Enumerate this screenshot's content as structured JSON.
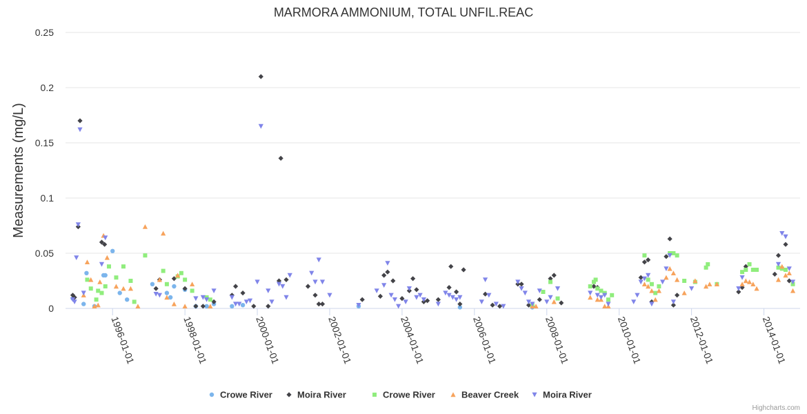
{
  "credits": "Highcharts.com",
  "chart_data": {
    "type": "scatter",
    "title": "MARMORA AMMONIUM, TOTAL UNFIL.REAC",
    "ylabel": "Measurements (mg/L)",
    "xlabel": "",
    "ylim": [
      0,
      0.25
    ],
    "yticks": [
      0,
      0.05,
      0.1,
      0.15,
      0.2,
      0.25
    ],
    "ytick_labels": [
      "0",
      "0.05",
      "0.1",
      "0.15",
      "0.2",
      "0.25"
    ],
    "xlim": [
      1994.7,
      2015.0
    ],
    "xticks": [
      1996,
      1998,
      2000,
      2002,
      2004,
      2006,
      2008,
      2010,
      2012,
      2014
    ],
    "xtick_labels": [
      "1996-01-01",
      "1998-01-01",
      "2000-01-01",
      "2002-01-01",
      "2004-01-01",
      "2006-01-01",
      "2008-01-01",
      "2010-01-01",
      "2012-01-01",
      "2014-01-01"
    ],
    "grid": true,
    "legend_position": "bottom",
    "series": [
      {
        "name": "Crowe River",
        "color": "#7cb5ec",
        "marker": "circle",
        "points": [
          [
            1994.9,
            0.009
          ],
          [
            1995.2,
            0.004
          ],
          [
            1995.28,
            0.032
          ],
          [
            1995.5,
            0.002
          ],
          [
            1995.75,
            0.03
          ],
          [
            1995.8,
            0.03
          ],
          [
            1996.0,
            0.052
          ],
          [
            1996.2,
            0.014
          ],
          [
            1996.4,
            0.008
          ],
          [
            1997.1,
            0.022
          ],
          [
            1997.5,
            0.014
          ],
          [
            1997.6,
            0.01
          ],
          [
            1997.7,
            0.02
          ],
          [
            1998.0,
            0.017
          ],
          [
            1998.3,
            0.002
          ],
          [
            1998.6,
            0.002
          ],
          [
            1998.8,
            0.004
          ],
          [
            1999.3,
            0.002
          ],
          [
            1999.6,
            0.003
          ],
          [
            2002.8,
            0.002
          ],
          [
            2005.6,
            0.001
          ],
          [
            2007.6,
            0.001
          ]
        ]
      },
      {
        "name": "Moira River",
        "color": "#434348",
        "marker": "diamond",
        "points": [
          [
            1994.9,
            0.012
          ],
          [
            1994.95,
            0.01
          ],
          [
            1995.05,
            0.074
          ],
          [
            1995.1,
            0.17
          ],
          [
            1995.7,
            0.06
          ],
          [
            1995.78,
            0.058
          ],
          [
            1997.2,
            0.018
          ],
          [
            1997.3,
            0.026
          ],
          [
            1997.7,
            0.027
          ],
          [
            1998.0,
            0.018
          ],
          [
            1998.3,
            0.002
          ],
          [
            1998.5,
            0.002
          ],
          [
            1998.8,
            0.006
          ],
          [
            1999.3,
            0.012
          ],
          [
            1999.4,
            0.02
          ],
          [
            1999.6,
            0.014
          ],
          [
            1999.9,
            0.002
          ],
          [
            2000.1,
            0.21
          ],
          [
            2000.3,
            0.002
          ],
          [
            2000.6,
            0.025
          ],
          [
            2000.65,
            0.136
          ],
          [
            2000.8,
            0.026
          ],
          [
            2001.4,
            0.02
          ],
          [
            2001.6,
            0.012
          ],
          [
            2001.7,
            0.004
          ],
          [
            2001.8,
            0.004
          ],
          [
            2002.9,
            0.008
          ],
          [
            2003.4,
            0.011
          ],
          [
            2003.5,
            0.03
          ],
          [
            2003.6,
            0.033
          ],
          [
            2003.75,
            0.025
          ],
          [
            2004.0,
            0.009
          ],
          [
            2004.2,
            0.016
          ],
          [
            2004.3,
            0.027
          ],
          [
            2004.4,
            0.017
          ],
          [
            2004.6,
            0.006
          ],
          [
            2004.7,
            0.007
          ],
          [
            2005.0,
            0.008
          ],
          [
            2005.3,
            0.019
          ],
          [
            2005.35,
            0.038
          ],
          [
            2005.5,
            0.015
          ],
          [
            2005.6,
            0.004
          ],
          [
            2005.7,
            0.035
          ],
          [
            2006.3,
            0.013
          ],
          [
            2006.5,
            0.003
          ],
          [
            2006.7,
            0.002
          ],
          [
            2007.2,
            0.022
          ],
          [
            2007.3,
            0.022
          ],
          [
            2007.5,
            0.003
          ],
          [
            2007.6,
            0.002
          ],
          [
            2007.8,
            0.008
          ],
          [
            2008.1,
            0.027
          ],
          [
            2008.2,
            0.03
          ],
          [
            2008.4,
            0.005
          ],
          [
            2009.3,
            0.02
          ],
          [
            2009.4,
            0.019
          ],
          [
            2010.6,
            0.028
          ],
          [
            2010.7,
            0.042
          ],
          [
            2010.8,
            0.044
          ],
          [
            2010.9,
            0.006
          ],
          [
            2011.3,
            0.047
          ],
          [
            2011.4,
            0.063
          ],
          [
            2011.5,
            0.003
          ],
          [
            2011.6,
            0.012
          ],
          [
            2013.3,
            0.015
          ],
          [
            2013.4,
            0.019
          ],
          [
            2013.5,
            0.038
          ],
          [
            2014.3,
            0.031
          ],
          [
            2014.4,
            0.048
          ],
          [
            2014.6,
            0.058
          ],
          [
            2014.7,
            0.025
          ]
        ]
      },
      {
        "name": "Crowe River",
        "color": "#90ed7d",
        "marker": "square",
        "points": [
          [
            1995.3,
            0.026
          ],
          [
            1995.4,
            0.018
          ],
          [
            1995.55,
            0.008
          ],
          [
            1995.6,
            0.016
          ],
          [
            1995.7,
            0.014
          ],
          [
            1995.8,
            0.02
          ],
          [
            1995.9,
            0.038
          ],
          [
            1996.1,
            0.028
          ],
          [
            1996.3,
            0.038
          ],
          [
            1996.5,
            0.025
          ],
          [
            1996.6,
            0.006
          ],
          [
            1996.9,
            0.048
          ],
          [
            1997.4,
            0.034
          ],
          [
            1997.5,
            0.022
          ],
          [
            1997.8,
            0.029
          ],
          [
            1997.9,
            0.032
          ],
          [
            1998.0,
            0.026
          ],
          [
            1998.2,
            0.016
          ],
          [
            1998.6,
            0.01
          ],
          [
            1998.7,
            0.008
          ],
          [
            2007.6,
            0.003
          ],
          [
            2007.9,
            0.015
          ],
          [
            2008.1,
            0.024
          ],
          [
            2008.3,
            0.009
          ],
          [
            2009.2,
            0.02
          ],
          [
            2009.3,
            0.024
          ],
          [
            2009.35,
            0.026
          ],
          [
            2009.4,
            0.018
          ],
          [
            2009.5,
            0.016
          ],
          [
            2009.6,
            0.014
          ],
          [
            2009.7,
            0.008
          ],
          [
            2009.8,
            0.012
          ],
          [
            2010.7,
            0.048
          ],
          [
            2010.8,
            0.026
          ],
          [
            2010.9,
            0.022
          ],
          [
            2011.0,
            0.014
          ],
          [
            2011.1,
            0.02
          ],
          [
            2011.4,
            0.05
          ],
          [
            2011.5,
            0.05
          ],
          [
            2011.6,
            0.048
          ],
          [
            2011.8,
            0.025
          ],
          [
            2012.1,
            0.024
          ],
          [
            2012.4,
            0.037
          ],
          [
            2012.45,
            0.04
          ],
          [
            2012.7,
            0.022
          ],
          [
            2013.4,
            0.033
          ],
          [
            2013.5,
            0.035
          ],
          [
            2013.6,
            0.04
          ],
          [
            2013.7,
            0.035
          ],
          [
            2013.8,
            0.035
          ],
          [
            2014.4,
            0.037
          ],
          [
            2014.5,
            0.036
          ],
          [
            2014.6,
            0.035
          ],
          [
            2014.8,
            0.022
          ]
        ]
      },
      {
        "name": "Beaver Creek",
        "color": "#f7a35c",
        "marker": "triangle",
        "points": [
          [
            1995.2,
            0.012
          ],
          [
            1995.3,
            0.042
          ],
          [
            1995.4,
            0.026
          ],
          [
            1995.5,
            0.002
          ],
          [
            1995.6,
            0.003
          ],
          [
            1995.65,
            0.024
          ],
          [
            1995.75,
            0.066
          ],
          [
            1995.85,
            0.046
          ],
          [
            1996.1,
            0.02
          ],
          [
            1996.3,
            0.018
          ],
          [
            1996.5,
            0.018
          ],
          [
            1996.7,
            0.002
          ],
          [
            1996.9,
            0.074
          ],
          [
            1997.3,
            0.026
          ],
          [
            1997.4,
            0.068
          ],
          [
            1997.5,
            0.01
          ],
          [
            1997.7,
            0.004
          ],
          [
            1997.8,
            0.03
          ],
          [
            1998.0,
            0.002
          ],
          [
            1998.2,
            0.022
          ],
          [
            1998.7,
            0.002
          ],
          [
            2007.6,
            0.002
          ],
          [
            2007.7,
            0.002
          ],
          [
            2008.2,
            0.006
          ],
          [
            2009.2,
            0.01
          ],
          [
            2009.4,
            0.008
          ],
          [
            2009.5,
            0.008
          ],
          [
            2009.6,
            0.002
          ],
          [
            2009.7,
            0.002
          ],
          [
            2010.7,
            0.022
          ],
          [
            2010.8,
            0.02
          ],
          [
            2010.9,
            0.016
          ],
          [
            2011.0,
            0.008
          ],
          [
            2011.1,
            0.016
          ],
          [
            2011.3,
            0.028
          ],
          [
            2011.4,
            0.036
          ],
          [
            2011.5,
            0.032
          ],
          [
            2011.6,
            0.026
          ],
          [
            2011.8,
            0.014
          ],
          [
            2012.1,
            0.025
          ],
          [
            2012.4,
            0.02
          ],
          [
            2012.5,
            0.022
          ],
          [
            2012.7,
            0.022
          ],
          [
            2013.4,
            0.022
          ],
          [
            2013.5,
            0.025
          ],
          [
            2013.6,
            0.024
          ],
          [
            2013.7,
            0.022
          ],
          [
            2013.8,
            0.018
          ],
          [
            2014.4,
            0.026
          ],
          [
            2014.5,
            0.038
          ],
          [
            2014.6,
            0.03
          ],
          [
            2014.7,
            0.032
          ],
          [
            2014.8,
            0.016
          ]
        ]
      },
      {
        "name": "Moira River",
        "color": "#8085e9",
        "marker": "triangle-down",
        "points": [
          [
            1994.9,
            0.008
          ],
          [
            1994.95,
            0.006
          ],
          [
            1995.0,
            0.046
          ],
          [
            1995.05,
            0.076
          ],
          [
            1995.1,
            0.162
          ],
          [
            1995.2,
            0.014
          ],
          [
            1995.7,
            0.04
          ],
          [
            1995.8,
            0.064
          ],
          [
            1997.2,
            0.013
          ],
          [
            1997.3,
            0.012
          ],
          [
            1998.3,
            0.009
          ],
          [
            1998.5,
            0.01
          ],
          [
            1998.6,
            0.008
          ],
          [
            1998.8,
            0.016
          ],
          [
            1999.3,
            0.01
          ],
          [
            1999.4,
            0.004
          ],
          [
            1999.5,
            0.004
          ],
          [
            1999.7,
            0.006
          ],
          [
            1999.8,
            0.007
          ],
          [
            2000.0,
            0.024
          ],
          [
            2000.1,
            0.165
          ],
          [
            2000.3,
            0.016
          ],
          [
            2000.4,
            0.006
          ],
          [
            2000.6,
            0.022
          ],
          [
            2000.7,
            0.02
          ],
          [
            2000.8,
            0.01
          ],
          [
            2000.9,
            0.03
          ],
          [
            2001.5,
            0.032
          ],
          [
            2001.6,
            0.024
          ],
          [
            2001.7,
            0.044
          ],
          [
            2001.8,
            0.024
          ],
          [
            2002.0,
            0.012
          ],
          [
            2002.8,
            0.003
          ],
          [
            2003.3,
            0.016
          ],
          [
            2003.5,
            0.021
          ],
          [
            2003.6,
            0.041
          ],
          [
            2003.7,
            0.012
          ],
          [
            2003.8,
            0.008
          ],
          [
            2003.9,
            0.002
          ],
          [
            2004.1,
            0.006
          ],
          [
            2004.2,
            0.018
          ],
          [
            2004.4,
            0.01
          ],
          [
            2004.5,
            0.012
          ],
          [
            2004.6,
            0.008
          ],
          [
            2005.0,
            0.004
          ],
          [
            2005.2,
            0.014
          ],
          [
            2005.3,
            0.012
          ],
          [
            2005.4,
            0.01
          ],
          [
            2005.5,
            0.008
          ],
          [
            2005.6,
            0.01
          ],
          [
            2006.2,
            0.006
          ],
          [
            2006.3,
            0.026
          ],
          [
            2006.4,
            0.012
          ],
          [
            2006.6,
            0.004
          ],
          [
            2006.8,
            0.002
          ],
          [
            2007.2,
            0.024
          ],
          [
            2007.3,
            0.018
          ],
          [
            2007.4,
            0.014
          ],
          [
            2007.5,
            0.006
          ],
          [
            2007.6,
            0.004
          ],
          [
            2007.8,
            0.016
          ],
          [
            2008.0,
            0.006
          ],
          [
            2008.1,
            0.01
          ],
          [
            2008.3,
            0.018
          ],
          [
            2009.2,
            0.014
          ],
          [
            2009.4,
            0.012
          ],
          [
            2009.5,
            0.01
          ],
          [
            2009.6,
            0.012
          ],
          [
            2009.7,
            0.004
          ],
          [
            2010.4,
            0.006
          ],
          [
            2010.5,
            0.012
          ],
          [
            2010.6,
            0.024
          ],
          [
            2010.7,
            0.027
          ],
          [
            2010.8,
            0.03
          ],
          [
            2010.9,
            0.004
          ],
          [
            2011.2,
            0.024
          ],
          [
            2011.3,
            0.036
          ],
          [
            2011.4,
            0.048
          ],
          [
            2011.5,
            0.006
          ],
          [
            2012.0,
            0.018
          ],
          [
            2013.3,
            0.018
          ],
          [
            2013.4,
            0.028
          ],
          [
            2014.4,
            0.04
          ],
          [
            2014.5,
            0.068
          ],
          [
            2014.6,
            0.065
          ],
          [
            2014.7,
            0.036
          ],
          [
            2014.8,
            0.024
          ]
        ]
      }
    ]
  }
}
